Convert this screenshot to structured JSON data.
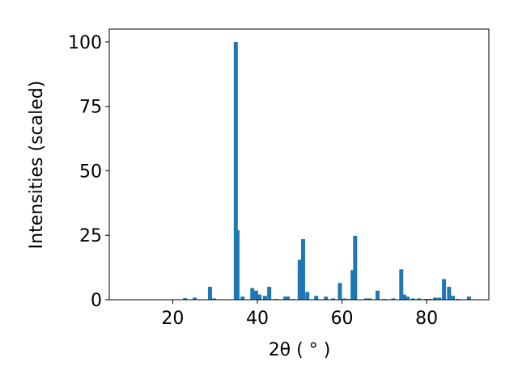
{
  "chart_data": {
    "type": "bar",
    "xlabel": "2θ ( ° )",
    "ylabel": "Intensities (scaled)",
    "x": [
      22.9,
      25.2,
      28.8,
      29.8,
      34.9,
      35.3,
      36.5,
      38.8,
      39.7,
      40.5,
      41.8,
      42.8,
      44.5,
      46.6,
      47.2,
      48.5,
      50.0,
      50.8,
      51.8,
      53.9,
      56.2,
      57.9,
      59.5,
      60.6,
      61.7,
      62.5,
      63.1,
      65.7,
      66.5,
      68.4,
      70.0,
      72.1,
      74.0,
      74.7,
      75.5,
      76.8,
      78.2,
      79.9,
      80.7,
      82.0,
      83.0,
      84.1,
      85.3,
      86.2,
      87.4,
      90.0
    ],
    "values": [
      0.6,
      0.8,
      5,
      0.5,
      100,
      27,
      1.2,
      4.5,
      3.5,
      2,
      1.5,
      5,
      0.3,
      1.2,
      1.2,
      0.3,
      15.5,
      23.5,
      3,
      1.5,
      1.2,
      0.5,
      6.5,
      0.5,
      0.3,
      11.5,
      24.8,
      0.5,
      0.5,
      3.5,
      0.3,
      0.5,
      11.8,
      2,
      1.2,
      0.5,
      0.5,
      0.3,
      0.3,
      0.8,
      0.8,
      8,
      5,
      1.5,
      0.3,
      1.2
    ],
    "color": "#1f77b4",
    "xlim": [
      5,
      94.7
    ],
    "xticks": [
      20,
      40,
      60,
      80
    ],
    "ylim": [
      0,
      105
    ],
    "yticks": [
      0,
      25,
      50,
      75,
      100
    ],
    "grid": false
  }
}
